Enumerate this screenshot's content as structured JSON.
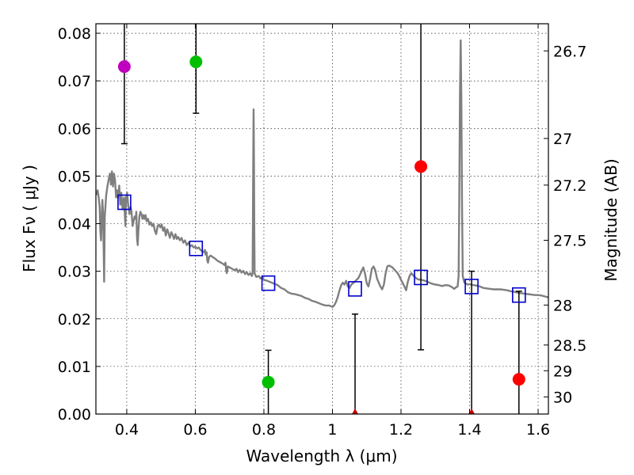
{
  "chart_data": {
    "type": "scatter",
    "xlabel": "Wavelength  λ (μm)",
    "ylabel": "Flux  Fν  ( μJy )",
    "ylabel_right": "Magnitude (AB)",
    "xlim": [
      0.31,
      1.63
    ],
    "ylim": [
      0.0,
      0.082
    ],
    "grid": true,
    "x_ticks": [
      0.4,
      0.6,
      0.8,
      1.0,
      1.2,
      1.4,
      1.6
    ],
    "x_tick_labels": [
      "0.4",
      "0.6",
      "0.8",
      "1",
      "1.2",
      "1.4",
      "1.6"
    ],
    "y_ticks": [
      0.0,
      0.01,
      0.02,
      0.03,
      0.04,
      0.05,
      0.06,
      0.07,
      0.08
    ],
    "y_tick_labels": [
      "0.00",
      "0.01",
      "0.02",
      "0.03",
      "0.04",
      "0.05",
      "0.06",
      "0.07",
      "0.08"
    ],
    "right_ticks": [
      {
        "label": "26.7",
        "flux": 0.0763
      },
      {
        "label": "27",
        "flux": 0.0579
      },
      {
        "label": "27.2",
        "flux": 0.0481
      },
      {
        "label": "27.5",
        "flux": 0.0365
      },
      {
        "label": "28",
        "flux": 0.0229
      },
      {
        "label": "28.5",
        "flux": 0.0145
      },
      {
        "label": "29",
        "flux": 0.0091
      },
      {
        "label": "30",
        "flux": 0.0036
      }
    ],
    "observed": [
      {
        "x": 0.393,
        "y": 0.073,
        "err_low": 0.0568,
        "err_high": 0.082,
        "color": "#bf00bf"
      },
      {
        "x": 0.602,
        "y": 0.074,
        "err_low": 0.0632,
        "err_high": 0.082,
        "color": "#00bf00"
      },
      {
        "x": 0.813,
        "y": 0.0067,
        "err_low": 0.0001,
        "err_high": 0.0134,
        "color": "#00bf00"
      },
      {
        "x": 1.066,
        "y": 0.0,
        "err_low": 0.0,
        "err_high": 0.021,
        "color": "#cc0000"
      },
      {
        "x": 1.258,
        "y": 0.052,
        "err_low": 0.0135,
        "err_high": 0.082,
        "color": "#ff0000"
      },
      {
        "x": 1.406,
        "y": 0.0,
        "err_low": 0.0,
        "err_high": 0.03,
        "color": "#cc0000"
      },
      {
        "x": 1.544,
        "y": 0.0073,
        "err_low": 0.0,
        "err_high": 0.0258,
        "color": "#ff0000"
      }
    ],
    "model_photometry": [
      {
        "x": 0.393,
        "y": 0.0445
      },
      {
        "x": 0.602,
        "y": 0.0348
      },
      {
        "x": 0.813,
        "y": 0.0275
      },
      {
        "x": 1.066,
        "y": 0.0263
      },
      {
        "x": 1.258,
        "y": 0.0287
      },
      {
        "x": 1.406,
        "y": 0.0268
      },
      {
        "x": 1.544,
        "y": 0.025
      }
    ],
    "model_spectrum": {
      "color": "#7f7f7f",
      "points": [
        [
          0.31,
          0.046
        ],
        [
          0.315,
          0.047
        ],
        [
          0.318,
          0.0455
        ],
        [
          0.321,
          0.0435
        ],
        [
          0.323,
          0.0385
        ],
        [
          0.325,
          0.0365
        ],
        [
          0.327,
          0.0415
        ],
        [
          0.329,
          0.045
        ],
        [
          0.331,
          0.042
        ],
        [
          0.333,
          0.0335
        ],
        [
          0.334,
          0.0278
        ],
        [
          0.336,
          0.0415
        ],
        [
          0.34,
          0.046
        ],
        [
          0.344,
          0.048
        ],
        [
          0.348,
          0.0495
        ],
        [
          0.351,
          0.0505
        ],
        [
          0.354,
          0.0482
        ],
        [
          0.357,
          0.051
        ],
        [
          0.36,
          0.0478
        ],
        [
          0.363,
          0.0505
        ],
        [
          0.366,
          0.049
        ],
        [
          0.369,
          0.0455
        ],
        [
          0.372,
          0.047
        ],
        [
          0.375,
          0.0455
        ],
        [
          0.378,
          0.048
        ],
        [
          0.381,
          0.044
        ],
        [
          0.384,
          0.0465
        ],
        [
          0.388,
          0.043
        ],
        [
          0.392,
          0.0455
        ],
        [
          0.396,
          0.0395
        ],
        [
          0.398,
          0.0455
        ],
        [
          0.401,
          0.0465
        ],
        [
          0.404,
          0.044
        ],
        [
          0.408,
          0.042
        ],
        [
          0.411,
          0.0435
        ],
        [
          0.414,
          0.0425
        ],
        [
          0.417,
          0.0395
        ],
        [
          0.42,
          0.0405
        ],
        [
          0.423,
          0.0415
        ],
        [
          0.426,
          0.041
        ],
        [
          0.428,
          0.0425
        ],
        [
          0.43,
          0.037
        ],
        [
          0.432,
          0.0355
        ],
        [
          0.434,
          0.0385
        ],
        [
          0.437,
          0.0415
        ],
        [
          0.44,
          0.0425
        ],
        [
          0.443,
          0.042
        ],
        [
          0.446,
          0.041
        ],
        [
          0.449,
          0.0418
        ],
        [
          0.452,
          0.041
        ],
        [
          0.455,
          0.0418
        ],
        [
          0.458,
          0.0405
        ],
        [
          0.462,
          0.041
        ],
        [
          0.466,
          0.0398
        ],
        [
          0.47,
          0.0403
        ],
        [
          0.474,
          0.0395
        ],
        [
          0.478,
          0.04
        ],
        [
          0.482,
          0.0385
        ],
        [
          0.486,
          0.0378
        ],
        [
          0.49,
          0.0395
        ],
        [
          0.494,
          0.0398
        ],
        [
          0.498,
          0.0392
        ],
        [
          0.502,
          0.0398
        ],
        [
          0.506,
          0.0385
        ],
        [
          0.51,
          0.0392
        ],
        [
          0.514,
          0.0375
        ],
        [
          0.518,
          0.0388
        ],
        [
          0.522,
          0.038
        ],
        [
          0.526,
          0.037
        ],
        [
          0.53,
          0.0382
        ],
        [
          0.534,
          0.0376
        ],
        [
          0.538,
          0.0368
        ],
        [
          0.542,
          0.0378
        ],
        [
          0.546,
          0.0368
        ],
        [
          0.55,
          0.0372
        ],
        [
          0.555,
          0.0365
        ],
        [
          0.56,
          0.037
        ],
        [
          0.565,
          0.036
        ],
        [
          0.57,
          0.0365
        ],
        [
          0.575,
          0.0355
        ],
        [
          0.58,
          0.036
        ],
        [
          0.585,
          0.0352
        ],
        [
          0.59,
          0.0355
        ],
        [
          0.595,
          0.035
        ],
        [
          0.6,
          0.0352
        ],
        [
          0.605,
          0.0348
        ],
        [
          0.61,
          0.035
        ],
        [
          0.615,
          0.0345
        ],
        [
          0.62,
          0.0342
        ],
        [
          0.625,
          0.034
        ],
        [
          0.628,
          0.0345
        ],
        [
          0.63,
          0.0335
        ],
        [
          0.633,
          0.034
        ],
        [
          0.635,
          0.0322
        ],
        [
          0.637,
          0.0318
        ],
        [
          0.64,
          0.033
        ],
        [
          0.645,
          0.0333
        ],
        [
          0.65,
          0.033
        ],
        [
          0.655,
          0.0328
        ],
        [
          0.66,
          0.0325
        ],
        [
          0.665,
          0.0322
        ],
        [
          0.67,
          0.032
        ],
        [
          0.675,
          0.0318
        ],
        [
          0.68,
          0.0316
        ],
        [
          0.685,
          0.0313
        ],
        [
          0.688,
          0.0318
        ],
        [
          0.69,
          0.0303
        ],
        [
          0.692,
          0.0296
        ],
        [
          0.695,
          0.031
        ],
        [
          0.7,
          0.0308
        ],
        [
          0.705,
          0.0306
        ],
        [
          0.71,
          0.0304
        ],
        [
          0.715,
          0.0302
        ],
        [
          0.72,
          0.0305
        ],
        [
          0.725,
          0.0298
        ],
        [
          0.73,
          0.0303
        ],
        [
          0.735,
          0.0297
        ],
        [
          0.74,
          0.0301
        ],
        [
          0.745,
          0.0294
        ],
        [
          0.75,
          0.0298
        ],
        [
          0.755,
          0.0292
        ],
        [
          0.76,
          0.0296
        ],
        [
          0.765,
          0.029
        ],
        [
          0.767,
          0.0295
        ],
        [
          0.768,
          0.0395
        ],
        [
          0.769,
          0.055
        ],
        [
          0.77,
          0.064
        ],
        [
          0.771,
          0.055
        ],
        [
          0.772,
          0.038
        ],
        [
          0.773,
          0.0295
        ],
        [
          0.778,
          0.0288
        ],
        [
          0.785,
          0.029
        ],
        [
          0.79,
          0.0285
        ],
        [
          0.795,
          0.0287
        ],
        [
          0.8,
          0.0282
        ],
        [
          0.81,
          0.028
        ],
        [
          0.82,
          0.0277
        ],
        [
          0.83,
          0.0274
        ],
        [
          0.84,
          0.0271
        ],
        [
          0.85,
          0.0265
        ],
        [
          0.86,
          0.0262
        ],
        [
          0.87,
          0.0256
        ],
        [
          0.88,
          0.0253
        ],
        [
          0.89,
          0.0252
        ],
        [
          0.9,
          0.025
        ],
        [
          0.91,
          0.0248
        ],
        [
          0.92,
          0.0244
        ],
        [
          0.93,
          0.0242
        ],
        [
          0.94,
          0.0238
        ],
        [
          0.95,
          0.0236
        ],
        [
          0.96,
          0.0233
        ],
        [
          0.97,
          0.023
        ],
        [
          0.98,
          0.0228
        ],
        [
          0.99,
          0.0228
        ],
        [
          1.0,
          0.0225
        ],
        [
          1.005,
          0.0228
        ],
        [
          1.01,
          0.0235
        ],
        [
          1.015,
          0.0245
        ],
        [
          1.02,
          0.0258
        ],
        [
          1.025,
          0.027
        ],
        [
          1.03,
          0.0276
        ],
        [
          1.035,
          0.0272
        ],
        [
          1.04,
          0.028
        ],
        [
          1.045,
          0.0268
        ],
        [
          1.05,
          0.0265
        ],
        [
          1.055,
          0.0272
        ],
        [
          1.06,
          0.0275
        ],
        [
          1.065,
          0.0278
        ],
        [
          1.07,
          0.0282
        ],
        [
          1.075,
          0.0285
        ],
        [
          1.08,
          0.0292
        ],
        [
          1.085,
          0.03
        ],
        [
          1.09,
          0.0308
        ],
        [
          1.095,
          0.0295
        ],
        [
          1.1,
          0.0275
        ],
        [
          1.105,
          0.0268
        ],
        [
          1.11,
          0.0285
        ],
        [
          1.115,
          0.0305
        ],
        [
          1.12,
          0.031
        ],
        [
          1.125,
          0.0302
        ],
        [
          1.13,
          0.0285
        ],
        [
          1.135,
          0.0276
        ],
        [
          1.14,
          0.0268
        ],
        [
          1.145,
          0.0262
        ],
        [
          1.15,
          0.0272
        ],
        [
          1.155,
          0.0295
        ],
        [
          1.16,
          0.031
        ],
        [
          1.165,
          0.0312
        ],
        [
          1.17,
          0.031
        ],
        [
          1.175,
          0.0308
        ],
        [
          1.18,
          0.0304
        ],
        [
          1.185,
          0.03
        ],
        [
          1.19,
          0.0296
        ],
        [
          1.195,
          0.029
        ],
        [
          1.2,
          0.0282
        ],
        [
          1.205,
          0.0275
        ],
        [
          1.21,
          0.0268
        ],
        [
          1.215,
          0.026
        ],
        [
          1.22,
          0.0278
        ],
        [
          1.225,
          0.029
        ],
        [
          1.23,
          0.0296
        ],
        [
          1.235,
          0.0292
        ],
        [
          1.24,
          0.0288
        ],
        [
          1.245,
          0.0285
        ],
        [
          1.25,
          0.0283
        ],
        [
          1.26,
          0.0282
        ],
        [
          1.27,
          0.028
        ],
        [
          1.28,
          0.0277
        ],
        [
          1.29,
          0.0274
        ],
        [
          1.3,
          0.0272
        ],
        [
          1.31,
          0.0271
        ],
        [
          1.32,
          0.0269
        ],
        [
          1.33,
          0.0271
        ],
        [
          1.34,
          0.027
        ],
        [
          1.35,
          0.0266
        ],
        [
          1.355,
          0.0263
        ],
        [
          1.36,
          0.0266
        ],
        [
          1.365,
          0.0268
        ],
        [
          1.368,
          0.029
        ],
        [
          1.37,
          0.045
        ],
        [
          1.372,
          0.067
        ],
        [
          1.374,
          0.0785
        ],
        [
          1.376,
          0.067
        ],
        [
          1.378,
          0.044
        ],
        [
          1.38,
          0.029
        ],
        [
          1.385,
          0.0276
        ],
        [
          1.39,
          0.0274
        ],
        [
          1.395,
          0.0272
        ],
        [
          1.4,
          0.0273
        ],
        [
          1.41,
          0.0271
        ],
        [
          1.42,
          0.027
        ],
        [
          1.43,
          0.0268
        ],
        [
          1.44,
          0.0265
        ],
        [
          1.45,
          0.0264
        ],
        [
          1.46,
          0.0263
        ],
        [
          1.47,
          0.0262
        ],
        [
          1.48,
          0.0262
        ],
        [
          1.49,
          0.0262
        ],
        [
          1.5,
          0.0261
        ],
        [
          1.51,
          0.026
        ],
        [
          1.52,
          0.0258
        ],
        [
          1.53,
          0.0257
        ],
        [
          1.54,
          0.0255
        ],
        [
          1.55,
          0.0254
        ],
        [
          1.56,
          0.0253
        ],
        [
          1.57,
          0.0252
        ],
        [
          1.58,
          0.0251
        ],
        [
          1.59,
          0.025
        ],
        [
          1.6,
          0.025
        ],
        [
          1.61,
          0.0249
        ],
        [
          1.62,
          0.0247
        ],
        [
          1.63,
          0.0245
        ]
      ]
    }
  }
}
